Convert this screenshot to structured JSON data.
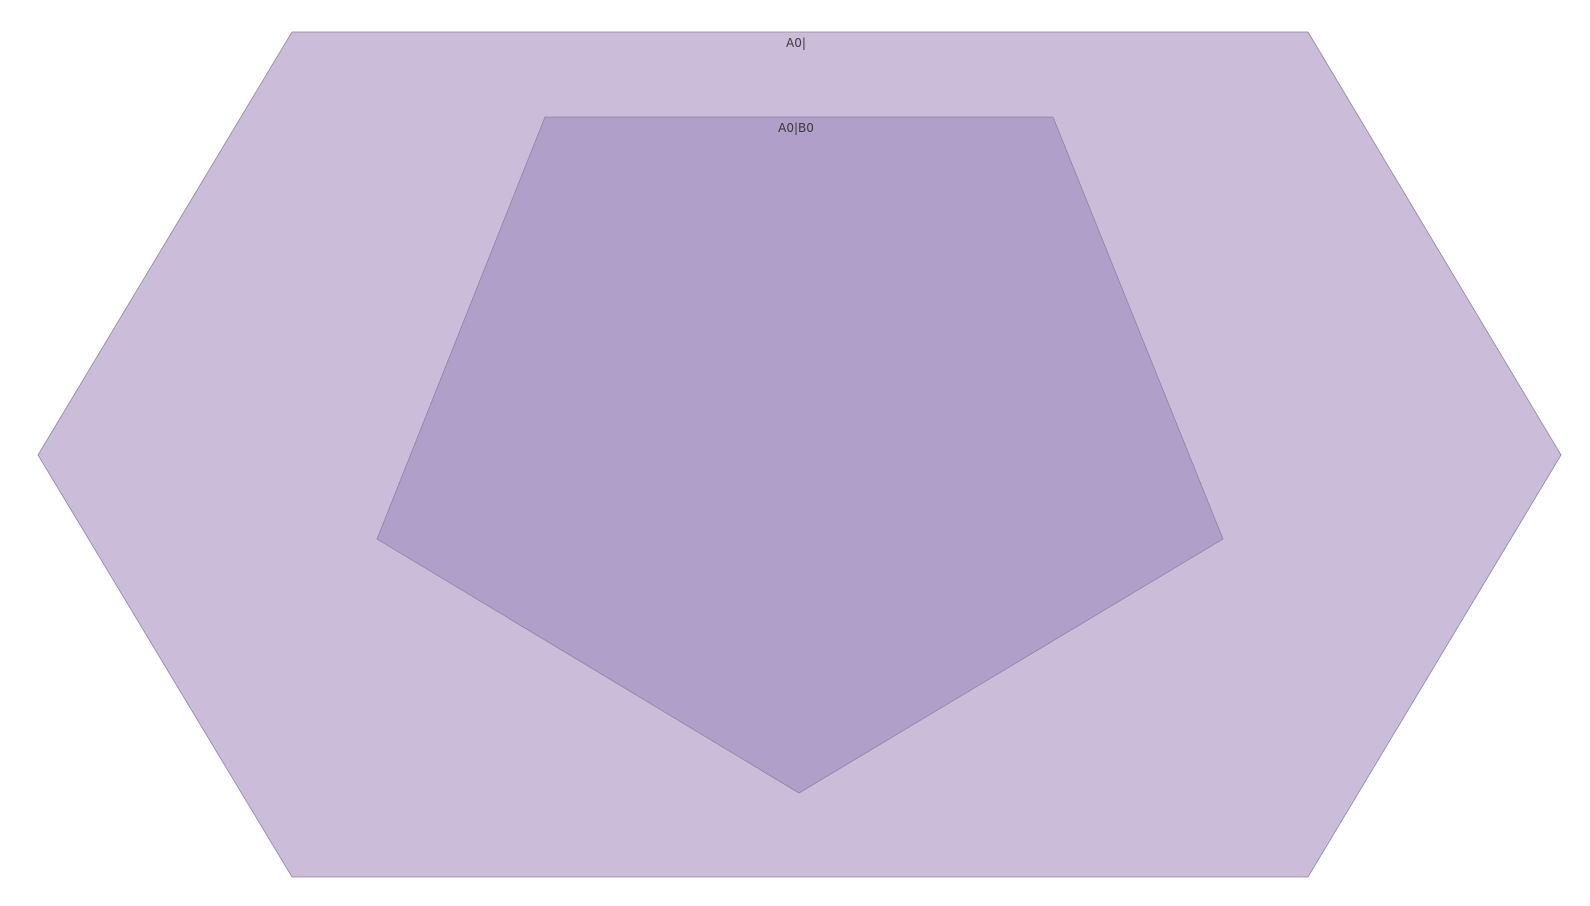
{
  "diagram": {
    "outer_shape": {
      "label": "A0|",
      "fill": "#cbbdda",
      "stroke": "#8f84a3"
    },
    "inner_shape": {
      "label": "A0|B0",
      "fill": "#b09fc8",
      "stroke": "#8f84a3"
    }
  }
}
